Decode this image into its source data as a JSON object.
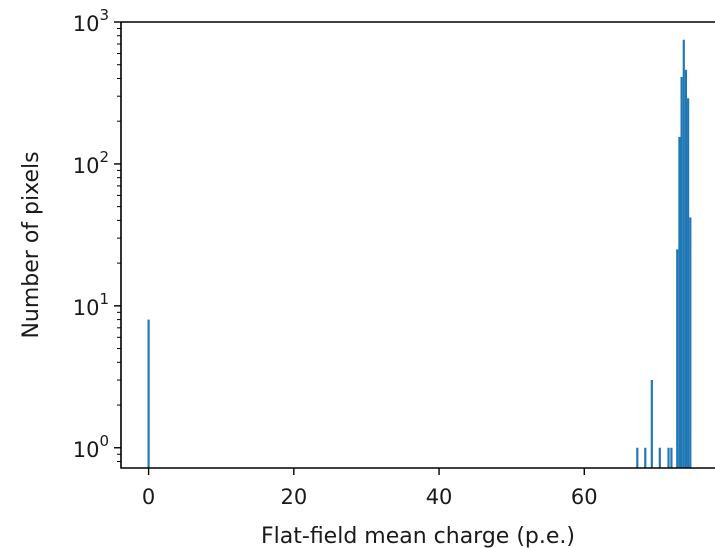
{
  "chart_data": {
    "type": "bar",
    "title": "",
    "xlabel": "Flat-field mean charge (p.e.)",
    "ylabel": "Number of pixels",
    "xlim": [
      -3.8,
      78
    ],
    "ylim": [
      0.72,
      1000
    ],
    "yscale": "log",
    "grid": false,
    "color": "#1f77b4",
    "bin_width": 0.3,
    "x_ticks": [
      0,
      20,
      40,
      60
    ],
    "x_tick_labels": [
      "0",
      "20",
      "40",
      "60"
    ],
    "y_ticks": [
      1,
      10,
      100,
      1000
    ],
    "y_tick_labels": [
      {
        "base": "10",
        "exp": "0"
      },
      {
        "base": "10",
        "exp": "1"
      },
      {
        "base": "10",
        "exp": "2"
      },
      {
        "base": "10",
        "exp": "3"
      }
    ],
    "bins": [
      {
        "x": 0.0,
        "count": 8
      },
      {
        "x": 67.3,
        "count": 1
      },
      {
        "x": 68.4,
        "count": 1
      },
      {
        "x": 69.3,
        "count": 3
      },
      {
        "x": 70.4,
        "count": 1
      },
      {
        "x": 71.6,
        "count": 1
      },
      {
        "x": 72.0,
        "count": 1
      },
      {
        "x": 72.8,
        "count": 25
      },
      {
        "x": 73.1,
        "count": 155
      },
      {
        "x": 73.4,
        "count": 410
      },
      {
        "x": 73.7,
        "count": 750
      },
      {
        "x": 74.0,
        "count": 460
      },
      {
        "x": 74.3,
        "count": 290
      },
      {
        "x": 74.6,
        "count": 42
      }
    ]
  }
}
